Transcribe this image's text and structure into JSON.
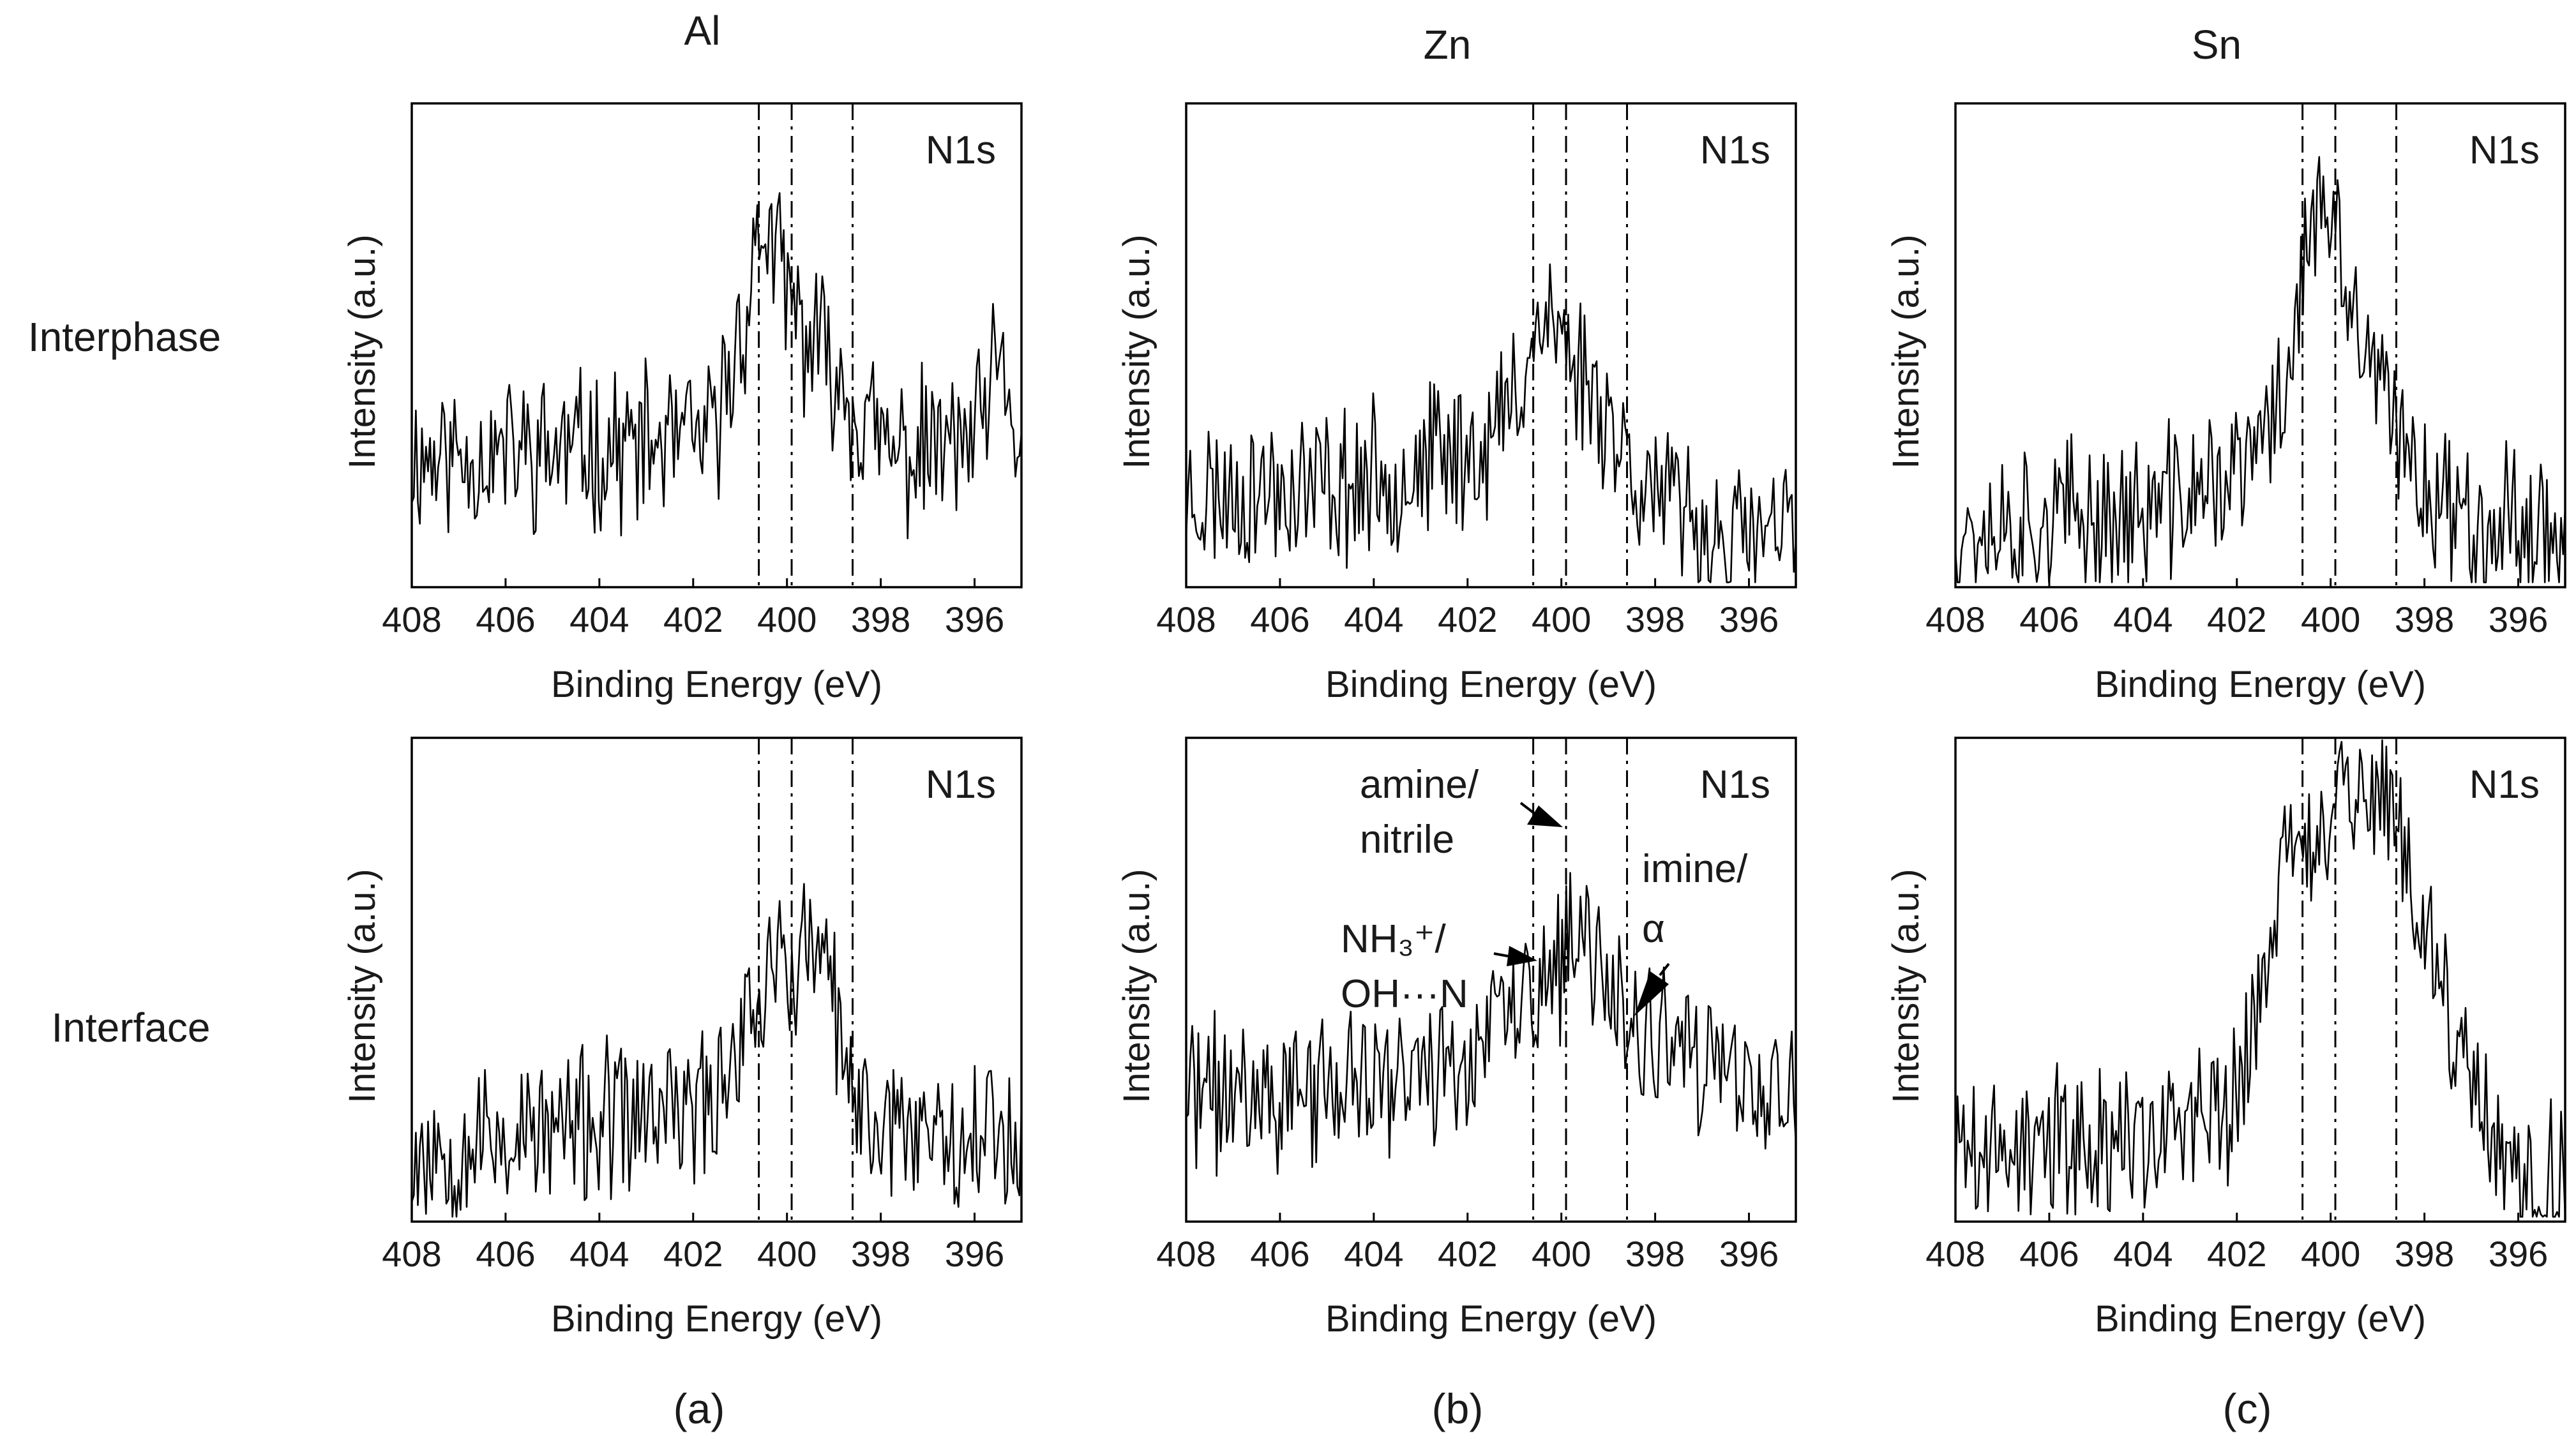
{
  "figure": {
    "columns": [
      {
        "title": "Al",
        "tag": "(a)"
      },
      {
        "title": "Zn",
        "tag": "(b)"
      },
      {
        "title": "Sn",
        "tag": "(c)"
      }
    ],
    "rows": [
      {
        "label": "Interphase"
      },
      {
        "label": "Interface"
      }
    ]
  },
  "annotations": {
    "amine": [
      "amine/",
      "nitrile"
    ],
    "nh3": [
      "NH₃⁺/",
      "OH···N"
    ],
    "imine": [
      "imine/",
      "α"
    ]
  },
  "chart_data": [
    {
      "id": "al-interphase",
      "type": "line",
      "column": "Al",
      "row": "Interphase",
      "region_label": "N1s",
      "xlabel": "Binding Energy (eV)",
      "ylabel": "Intensity (a.u.)",
      "xlim": [
        408,
        395
      ],
      "ylim": [
        0,
        1
      ],
      "x_ticks": [
        408,
        406,
        404,
        402,
        400,
        398,
        396
      ],
      "reference_lines": [
        400.6,
        399.9,
        398.6
      ],
      "noise_seed": 11,
      "profile": [
        [
          408,
          0.27
        ],
        [
          403,
          0.29
        ],
        [
          401.6,
          0.3
        ],
        [
          400.9,
          0.56
        ],
        [
          400.5,
          0.76
        ],
        [
          400.2,
          0.66
        ],
        [
          399.7,
          0.53
        ],
        [
          399.0,
          0.45
        ],
        [
          398.5,
          0.36
        ],
        [
          397.8,
          0.27
        ],
        [
          396.0,
          0.3
        ],
        [
          395.5,
          0.44
        ],
        [
          395.2,
          0.36
        ],
        [
          395,
          0.25
        ]
      ]
    },
    {
      "id": "zn-interphase",
      "type": "line",
      "column": "Zn",
      "row": "Interphase",
      "region_label": "N1s",
      "xlabel": "Binding Energy (eV)",
      "ylabel": "Intensity (a.u.)",
      "xlim": [
        408,
        395
      ],
      "ylim": [
        0,
        1
      ],
      "x_ticks": [
        408,
        406,
        404,
        402,
        400,
        398,
        396
      ],
      "reference_lines": [
        400.6,
        399.9,
        398.6
      ],
      "noise_seed": 23,
      "profile": [
        [
          408,
          0.19
        ],
        [
          404,
          0.22
        ],
        [
          401.5,
          0.3
        ],
        [
          400.9,
          0.42
        ],
        [
          400.4,
          0.58
        ],
        [
          399.8,
          0.48
        ],
        [
          399.1,
          0.38
        ],
        [
          398.6,
          0.27
        ],
        [
          397.8,
          0.17
        ],
        [
          396.5,
          0.09
        ],
        [
          395,
          0.11
        ]
      ]
    },
    {
      "id": "sn-interphase",
      "type": "line",
      "column": "Sn",
      "row": "Interphase",
      "region_label": "N1s",
      "xlabel": "Binding Energy (eV)",
      "ylabel": "Intensity (a.u.)",
      "xlim": [
        408,
        395
      ],
      "ylim": [
        0,
        1
      ],
      "x_ticks": [
        408,
        406,
        404,
        402,
        400,
        398,
        396
      ],
      "reference_lines": [
        400.6,
        399.9,
        398.6
      ],
      "noise_seed": 37,
      "profile": [
        [
          408,
          0.13
        ],
        [
          404,
          0.15
        ],
        [
          401.8,
          0.24
        ],
        [
          401.0,
          0.4
        ],
        [
          400.5,
          0.72
        ],
        [
          400.1,
          0.78
        ],
        [
          399.6,
          0.58
        ],
        [
          399.0,
          0.42
        ],
        [
          398.5,
          0.28
        ],
        [
          397.5,
          0.17
        ],
        [
          396,
          0.13
        ],
        [
          395,
          0.12
        ]
      ]
    },
    {
      "id": "al-interface",
      "type": "line",
      "column": "Al",
      "row": "Interface",
      "region_label": "N1s",
      "xlabel": "Binding Energy (eV)",
      "ylabel": "Intensity (a.u.)",
      "xlim": [
        408,
        395
      ],
      "ylim": [
        0,
        1
      ],
      "x_ticks": [
        408,
        406,
        404,
        402,
        400,
        398,
        396
      ],
      "reference_lines": [
        400.6,
        399.9,
        398.6
      ],
      "noise_seed": 53,
      "profile": [
        [
          408,
          0.15
        ],
        [
          404,
          0.2
        ],
        [
          401.6,
          0.24
        ],
        [
          401.0,
          0.4
        ],
        [
          400.3,
          0.53
        ],
        [
          399.8,
          0.52
        ],
        [
          399.4,
          0.58
        ],
        [
          398.9,
          0.4
        ],
        [
          398.6,
          0.22
        ],
        [
          397,
          0.2
        ],
        [
          395,
          0.18
        ]
      ]
    },
    {
      "id": "zn-interface",
      "type": "line",
      "column": "Zn",
      "row": "Interface",
      "region_label": "N1s",
      "xlabel": "Binding Energy (eV)",
      "ylabel": "Intensity (a.u.)",
      "xlim": [
        408,
        395
      ],
      "ylim": [
        0,
        1
      ],
      "x_ticks": [
        408,
        406,
        404,
        402,
        400,
        398,
        396
      ],
      "reference_lines": [
        400.6,
        399.9,
        398.6
      ],
      "noise_seed": 71,
      "profile": [
        [
          408,
          0.26
        ],
        [
          404,
          0.28
        ],
        [
          402,
          0.34
        ],
        [
          401,
          0.44
        ],
        [
          400.3,
          0.5
        ],
        [
          399.6,
          0.56
        ],
        [
          399.0,
          0.52
        ],
        [
          398.6,
          0.4
        ],
        [
          397.5,
          0.33
        ],
        [
          396.5,
          0.3
        ],
        [
          395,
          0.24
        ]
      ]
    },
    {
      "id": "sn-interface",
      "type": "line",
      "column": "Sn",
      "row": "Interface",
      "region_label": "N1s",
      "xlabel": "Binding Energy (eV)",
      "ylabel": "Intensity (a.u.)",
      "xlim": [
        408,
        395
      ],
      "ylim": [
        0,
        1
      ],
      "x_ticks": [
        408,
        406,
        404,
        402,
        400,
        398,
        396
      ],
      "reference_lines": [
        400.6,
        399.9,
        398.6
      ],
      "noise_seed": 89,
      "profile": [
        [
          408,
          0.14
        ],
        [
          404,
          0.18
        ],
        [
          402.2,
          0.22
        ],
        [
          401.6,
          0.42
        ],
        [
          401.0,
          0.74
        ],
        [
          400.4,
          0.82
        ],
        [
          399.8,
          0.86
        ],
        [
          399.2,
          0.9
        ],
        [
          398.6,
          0.82
        ],
        [
          398.0,
          0.62
        ],
        [
          397.4,
          0.38
        ],
        [
          396.8,
          0.2
        ],
        [
          396,
          0.1
        ],
        [
          395,
          0.1
        ]
      ]
    }
  ]
}
